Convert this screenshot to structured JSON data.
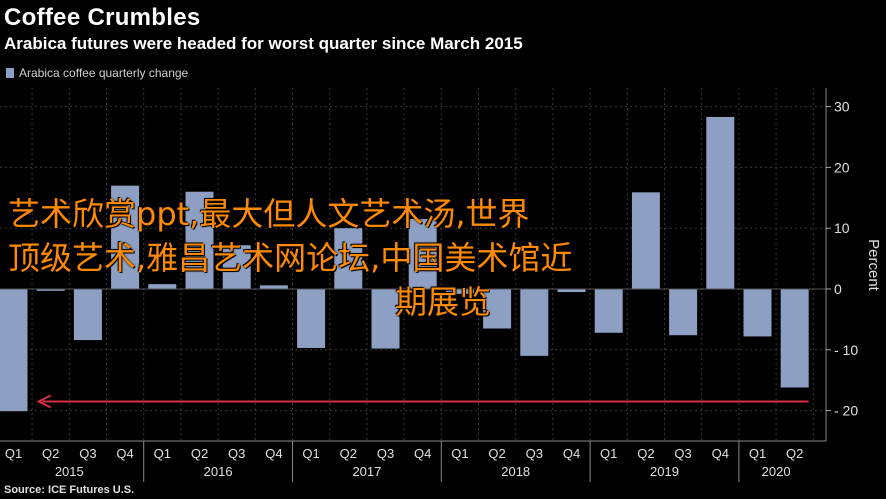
{
  "header": {
    "title": "Coffee Crumbles",
    "subtitle": "Arabica futures were headed for worst quarter since March 2015",
    "legend_label": "Arabica coffee quarterly change"
  },
  "footer": {
    "source": "Source: ICE Futures U.S."
  },
  "overlay": {
    "line1": "艺术欣赏ppt,最大但人文艺术汤,世界",
    "line2": "顶级艺术,雅昌艺术网论坛,中国美术馆近",
    "line3": "期展览"
  },
  "colors": {
    "bar": "#8da0c3",
    "arrow": "#d62f45",
    "grid": "#3a3a3a",
    "overlay_text": "#ff8a00"
  },
  "chart_data": {
    "type": "bar",
    "title": "Coffee Crumbles",
    "subtitle": "Arabica futures were headed for worst quarter since March 2015",
    "ylabel": "Percent",
    "ylim": [
      -25,
      32
    ],
    "yticks": [
      30,
      20,
      10,
      0,
      -10,
      -20
    ],
    "ytick_labels": [
      "30",
      "20",
      "10",
      "0",
      "- 10",
      "- 20"
    ],
    "grid": true,
    "legend_placement": "top-left",
    "series": [
      {
        "name": "Arabica coffee quarterly change",
        "values": [
          -20.1,
          -0.3,
          -8.4,
          17.0,
          0.8,
          16.0,
          7.2,
          0.6,
          -9.7,
          10.0,
          -9.8,
          11.5,
          -0.8,
          -6.5,
          -11.0,
          -0.5,
          -7.2,
          15.9,
          -7.6,
          28.3,
          -7.8,
          -16.2
        ]
      }
    ],
    "categories": [
      "Q1",
      "Q2",
      "Q3",
      "Q4",
      "Q1",
      "Q2",
      "Q3",
      "Q4",
      "Q1",
      "Q2",
      "Q3",
      "Q4",
      "Q1",
      "Q2",
      "Q3",
      "Q4",
      "Q1",
      "Q2",
      "Q3",
      "Q4",
      "Q1",
      "Q2"
    ],
    "year_groups": [
      {
        "label": "2015",
        "start": 0,
        "count": 4
      },
      {
        "label": "2016",
        "start": 4,
        "count": 4
      },
      {
        "label": "2017",
        "start": 8,
        "count": 4
      },
      {
        "label": "2018",
        "start": 12,
        "count": 4
      },
      {
        "label": "2019",
        "start": 16,
        "count": 4
      },
      {
        "label": "2020",
        "start": 20,
        "count": 2
      }
    ],
    "annotations": [
      {
        "type": "arrow",
        "value": -18.5,
        "direction": "left",
        "from_index": 21,
        "to_index": 1
      }
    ]
  }
}
